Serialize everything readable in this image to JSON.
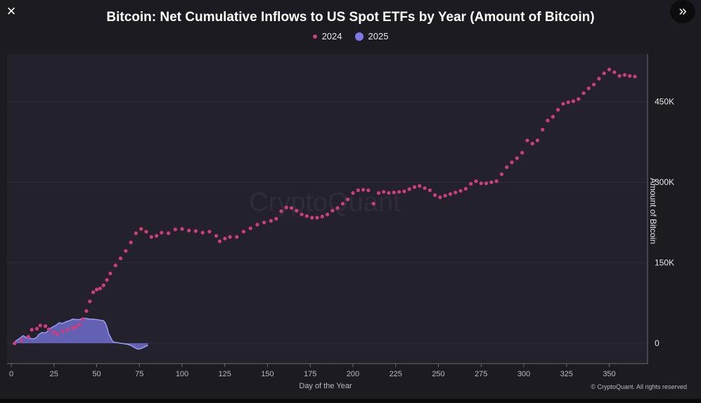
{
  "ui": {
    "close_icon": "×",
    "expand_icon": "»",
    "credits": "© CryptoQuant. All rights reserved",
    "watermark": "CryptoQuant"
  },
  "chart_data": {
    "type": "scatter",
    "title": "Bitcoin: Net Cumulative Inflows to US Spot ETFs by Year (Amount of Bitcoin)",
    "xlabel": "Day of the Year",
    "ylabel": "Amount of Bitcoin",
    "xlim": [
      0,
      370
    ],
    "ylim": [
      -35000,
      530000
    ],
    "x_ticks": [
      0,
      25,
      50,
      75,
      100,
      125,
      150,
      175,
      200,
      225,
      250,
      275,
      300,
      325,
      350
    ],
    "y_ticks": [
      0,
      150000,
      300000,
      450000
    ],
    "y_tick_labels": [
      "0",
      "150K",
      "300K",
      "450K"
    ],
    "grid": true,
    "legend_position": "top-center",
    "series": [
      {
        "name": "2024",
        "style": "dots",
        "color": "#d13c7e",
        "points": [
          [
            2,
            0
          ],
          [
            6,
            5000
          ],
          [
            10,
            12000
          ],
          [
            12,
            25000
          ],
          [
            15,
            27000
          ],
          [
            17,
            33000
          ],
          [
            20,
            32000
          ],
          [
            22,
            26000
          ],
          [
            25,
            20000
          ],
          [
            27,
            17000
          ],
          [
            30,
            22000
          ],
          [
            33,
            25000
          ],
          [
            36,
            28000
          ],
          [
            38,
            30000
          ],
          [
            40,
            35000
          ],
          [
            42,
            45000
          ],
          [
            44,
            60000
          ],
          [
            46,
            78000
          ],
          [
            48,
            95000
          ],
          [
            50,
            100000
          ],
          [
            52,
            102000
          ],
          [
            54,
            108000
          ],
          [
            56,
            118000
          ],
          [
            58,
            130000
          ],
          [
            61,
            145000
          ],
          [
            64,
            158000
          ],
          [
            67,
            172000
          ],
          [
            70,
            188000
          ],
          [
            73,
            205000
          ],
          [
            76,
            213000
          ],
          [
            79,
            208000
          ],
          [
            82,
            198000
          ],
          [
            85,
            200000
          ],
          [
            88,
            206000
          ],
          [
            92,
            205000
          ],
          [
            96,
            212000
          ],
          [
            100,
            213000
          ],
          [
            104,
            210000
          ],
          [
            108,
            209000
          ],
          [
            112,
            206000
          ],
          [
            116,
            208000
          ],
          [
            120,
            200000
          ],
          [
            122,
            190000
          ],
          [
            125,
            195000
          ],
          [
            128,
            198000
          ],
          [
            132,
            198000
          ],
          [
            136,
            208000
          ],
          [
            140,
            214000
          ],
          [
            144,
            221000
          ],
          [
            148,
            225000
          ],
          [
            152,
            228000
          ],
          [
            155,
            232000
          ],
          [
            158,
            246000
          ],
          [
            161,
            253000
          ],
          [
            164,
            252000
          ],
          [
            167,
            247000
          ],
          [
            170,
            240000
          ],
          [
            173,
            237000
          ],
          [
            176,
            234000
          ],
          [
            179,
            234000
          ],
          [
            182,
            236000
          ],
          [
            185,
            240000
          ],
          [
            188,
            247000
          ],
          [
            191,
            252000
          ],
          [
            194,
            260000
          ],
          [
            197,
            268000
          ],
          [
            200,
            280000
          ],
          [
            203,
            285000
          ],
          [
            206,
            286000
          ],
          [
            209,
            285000
          ],
          [
            212,
            260000
          ],
          [
            215,
            280000
          ],
          [
            218,
            282000
          ],
          [
            221,
            280000
          ],
          [
            224,
            281000
          ],
          [
            227,
            282000
          ],
          [
            230,
            283000
          ],
          [
            233,
            287000
          ],
          [
            236,
            291000
          ],
          [
            239,
            293000
          ],
          [
            242,
            289000
          ],
          [
            245,
            285000
          ],
          [
            248,
            276000
          ],
          [
            251,
            272000
          ],
          [
            254,
            275000
          ],
          [
            257,
            278000
          ],
          [
            260,
            281000
          ],
          [
            263,
            284000
          ],
          [
            266,
            288000
          ],
          [
            269,
            297000
          ],
          [
            272,
            302000
          ],
          [
            275,
            298000
          ],
          [
            278,
            298000
          ],
          [
            281,
            300000
          ],
          [
            284,
            302000
          ],
          [
            287,
            315000
          ],
          [
            290,
            328000
          ],
          [
            293,
            337000
          ],
          [
            296,
            345000
          ],
          [
            299,
            355000
          ],
          [
            302,
            378000
          ],
          [
            305,
            372000
          ],
          [
            308,
            378000
          ],
          [
            311,
            398000
          ],
          [
            314,
            415000
          ],
          [
            317,
            422000
          ],
          [
            320,
            435000
          ],
          [
            323,
            446000
          ],
          [
            326,
            449000
          ],
          [
            329,
            451000
          ],
          [
            332,
            455000
          ],
          [
            335,
            466000
          ],
          [
            338,
            475000
          ],
          [
            341,
            482000
          ],
          [
            344,
            493000
          ],
          [
            347,
            503000
          ],
          [
            350,
            510000
          ],
          [
            353,
            505000
          ],
          [
            356,
            498000
          ],
          [
            359,
            500000
          ],
          [
            362,
            498000
          ],
          [
            365,
            497000
          ]
        ]
      },
      {
        "name": "2025",
        "style": "area",
        "color": "#7d7ae6",
        "points": [
          [
            1,
            -2000
          ],
          [
            3,
            5000
          ],
          [
            5,
            9000
          ],
          [
            7,
            14000
          ],
          [
            9,
            10000
          ],
          [
            11,
            9000
          ],
          [
            13,
            8000
          ],
          [
            15,
            11000
          ],
          [
            16,
            16000
          ],
          [
            18,
            20000
          ],
          [
            20,
            19000
          ],
          [
            22,
            25000
          ],
          [
            24,
            30000
          ],
          [
            26,
            33000
          ],
          [
            28,
            38000
          ],
          [
            30,
            37000
          ],
          [
            32,
            40000
          ],
          [
            34,
            42000
          ],
          [
            36,
            45000
          ],
          [
            38,
            44000
          ],
          [
            40,
            44000
          ],
          [
            42,
            47000
          ],
          [
            44,
            46000
          ],
          [
            46,
            45000
          ],
          [
            48,
            45000
          ],
          [
            50,
            44000
          ],
          [
            52,
            43000
          ],
          [
            54,
            42000
          ],
          [
            55,
            38000
          ],
          [
            56,
            30000
          ],
          [
            57,
            18000
          ],
          [
            58,
            12000
          ],
          [
            59,
            5000
          ],
          [
            60,
            2000
          ],
          [
            62,
            1000
          ],
          [
            64,
            0
          ],
          [
            66,
            -1000
          ],
          [
            68,
            -2000
          ],
          [
            70,
            -4000
          ],
          [
            72,
            -8000
          ],
          [
            74,
            -11000
          ],
          [
            76,
            -10000
          ],
          [
            78,
            -7000
          ],
          [
            80,
            -4000
          ]
        ]
      }
    ]
  }
}
